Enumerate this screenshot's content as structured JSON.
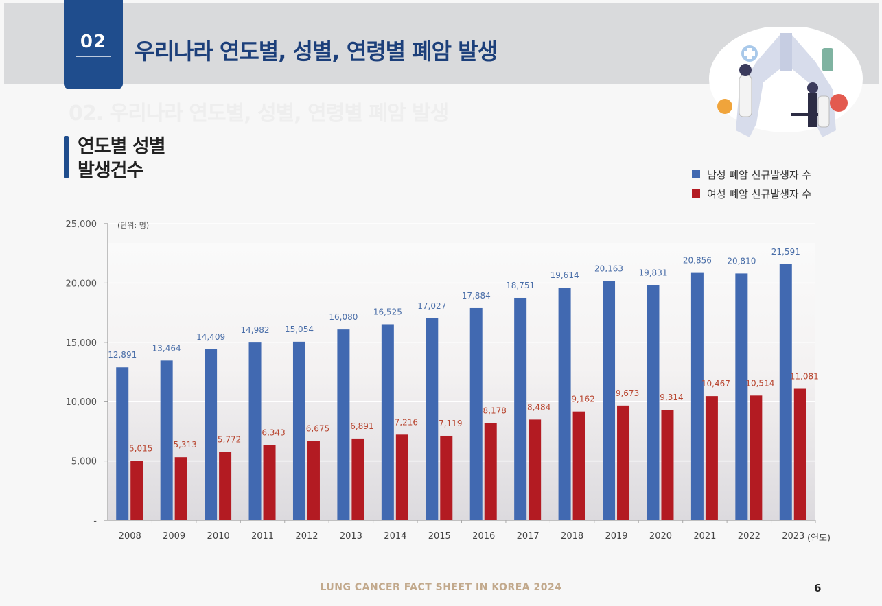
{
  "header": {
    "section_number": "02",
    "title": "우리나라 연도별, 성별, 연령별 폐암 발생",
    "ghost_title": "02. 우리나라 연도별, 성별, 연령별 폐암 발생"
  },
  "subtitle": {
    "line1": "연도별 성별",
    "line2": "발생건수"
  },
  "legend": {
    "items": [
      {
        "label": "남성 폐암 신규발생자 수",
        "color": "#4169b1"
      },
      {
        "label": "여성 폐암 신규발생자 수",
        "color": "#b31b22"
      }
    ]
  },
  "chart_data": {
    "type": "bar",
    "title": "연도별 성별 발생건수",
    "unit_label": "(단위: 명)",
    "xlabel": "(연도)",
    "ylabel": "",
    "ylim": [
      0,
      25000
    ],
    "yticks": [
      0,
      5000,
      10000,
      15000,
      20000,
      25000
    ],
    "ytick_labels": [
      "-",
      "5,000",
      "10,000",
      "15,000",
      "20,000",
      "25,000"
    ],
    "categories": [
      "2008",
      "2009",
      "2010",
      "2011",
      "2012",
      "2013",
      "2014",
      "2015",
      "2016",
      "2017",
      "2018",
      "2019",
      "2020",
      "2021",
      "2022",
      "2023"
    ],
    "series": [
      {
        "name": "남성 폐암 신규발생자 수",
        "color": "#4169b1",
        "label_color": "#4a6ea8",
        "values": [
          12891,
          13464,
          14409,
          14982,
          15054,
          16080,
          16525,
          17027,
          17884,
          18751,
          19614,
          20163,
          19831,
          20856,
          20810,
          21591
        ],
        "labels": [
          "12,891",
          "13,464",
          "14,409",
          "14,982",
          "15,054",
          "16,080",
          "16,525",
          "17,027",
          "17,884",
          "18,751",
          "19,614",
          "20,163",
          "19,831",
          "20,856",
          "20,810",
          "21,591"
        ]
      },
      {
        "name": "여성 폐암 신규발생자 수",
        "color": "#b31b22",
        "label_color": "#b8452f",
        "values": [
          5015,
          5313,
          5772,
          6343,
          6675,
          6891,
          7216,
          7119,
          8178,
          8484,
          9162,
          9673,
          9314,
          10467,
          10514,
          11081
        ],
        "labels": [
          "5,015",
          "5,313",
          "5,772",
          "6,343",
          "6,675",
          "6,891",
          "7,216",
          "7,119",
          "8,178",
          "8,484",
          "9,162",
          "9,673",
          "9,314",
          "10,467",
          "10,514",
          "11,081"
        ]
      }
    ]
  },
  "footer": {
    "text": "LUNG CANCER FACT SHEET IN KOREA 2024",
    "page_number": "6"
  }
}
